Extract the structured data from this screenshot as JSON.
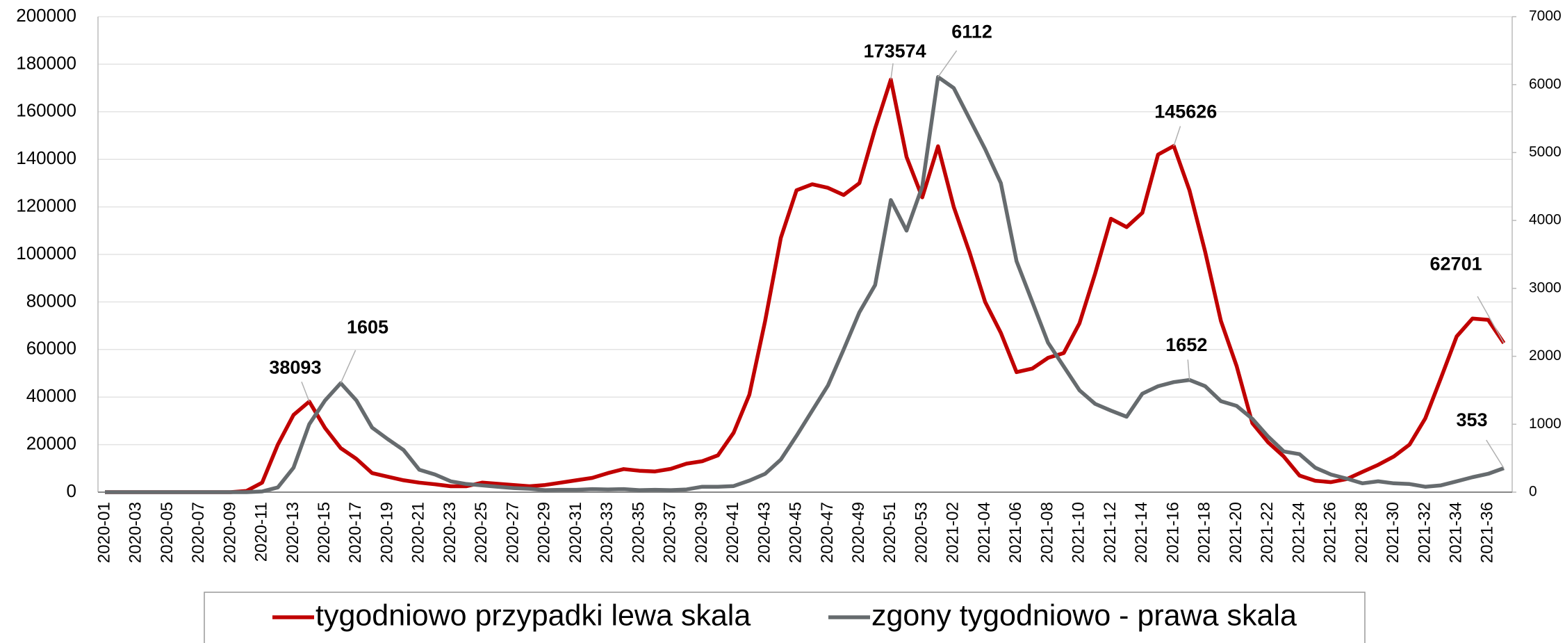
{
  "chart_data": {
    "type": "line",
    "categories": [
      "2020-01",
      null,
      "2020-03",
      null,
      "2020-05",
      null,
      "2020-07",
      null,
      "2020-09",
      null,
      "2020-11",
      null,
      "2020-13",
      null,
      "2020-15",
      null,
      "2020-17",
      null,
      "2020-19",
      null,
      "2020-21",
      null,
      "2020-23",
      null,
      "2020-25",
      null,
      "2020-27",
      null,
      "2020-29",
      null,
      "2020-31",
      null,
      "2020-33",
      null,
      "2020-35",
      null,
      "2020-37",
      null,
      "2020-39",
      null,
      "2020-41",
      null,
      "2020-43",
      null,
      "2020-45",
      null,
      "2020-47",
      null,
      "2020-49",
      null,
      "2020-51",
      null,
      "2020-53",
      null,
      "2021-02",
      null,
      "2021-04",
      null,
      "2021-06",
      null,
      "2021-08",
      null,
      "2021-10",
      null,
      "2021-12",
      null,
      "2021-14",
      null,
      "2021-16",
      null,
      "2021-18",
      null,
      "2021-20",
      null,
      "2021-22",
      null,
      "2021-24",
      null,
      "2021-26",
      null,
      "2021-28",
      null,
      "2021-30",
      null,
      "2021-32",
      null,
      "2021-34",
      null,
      "2021-36",
      null
    ],
    "series": [
      {
        "name": "tygodniowo przypadki lewa skala",
        "color": "#c00000",
        "values": [
          0,
          0,
          0,
          0,
          0,
          0,
          0,
          0,
          0,
          500,
          4000,
          20000,
          32500,
          38093,
          27000,
          18500,
          14000,
          8000,
          6500,
          5000,
          4000,
          3300,
          2500,
          2500,
          4000,
          3500,
          3000,
          2500,
          3000,
          4000,
          5000,
          6000,
          8000,
          9700,
          9000,
          8700,
          9800,
          12000,
          13000,
          15500,
          25000,
          41000,
          72000,
          107000,
          127000,
          129500,
          128000,
          125000,
          130000,
          153000,
          173574,
          141000,
          124000,
          145500,
          120000,
          101000,
          80000,
          67000,
          50500,
          52000,
          56500,
          58500,
          71000,
          92000,
          115000,
          111500,
          117500,
          142000,
          145626,
          127000,
          101000,
          72000,
          53000,
          29000,
          21000,
          15000,
          7000,
          4800,
          4200,
          5500,
          8500,
          11500,
          15000,
          20000,
          31000,
          48000,
          65500,
          73000,
          72500,
          62701
        ]
      },
      {
        "name": "zgony tygodniowo - prawa skala",
        "color": "#666b6e",
        "axis": "y2",
        "values": [
          0,
          0,
          0,
          0,
          0,
          0,
          0,
          0,
          0,
          0,
          10,
          70,
          360,
          1000,
          1350,
          1605,
          1350,
          950,
          780,
          620,
          330,
          260,
          160,
          120,
          100,
          80,
          60,
          50,
          30,
          35,
          35,
          45,
          40,
          45,
          30,
          35,
          30,
          40,
          80,
          80,
          90,
          170,
          270,
          480,
          830,
          1200,
          1570,
          2100,
          2650,
          3050,
          4300,
          3850,
          4500,
          6112,
          5950,
          5500,
          5050,
          4550,
          3400,
          2800,
          2200,
          1850,
          1500,
          1300,
          1200,
          1110,
          1450,
          1560,
          1620,
          1652,
          1560,
          1340,
          1270,
          1080,
          820,
          600,
          560,
          360,
          260,
          200,
          130,
          160,
          130,
          120,
          80,
          100,
          160,
          220,
          270,
          353
        ]
      }
    ],
    "ylim": [
      0,
      200000
    ],
    "yticks": [
      0,
      20000,
      40000,
      60000,
      80000,
      100000,
      120000,
      140000,
      160000,
      180000,
      200000
    ],
    "y2lim": [
      0,
      7000
    ],
    "y2ticks": [
      0,
      1000,
      2000,
      3000,
      4000,
      5000,
      6000,
      7000
    ],
    "grid": true,
    "legend": "bottom"
  }
}
